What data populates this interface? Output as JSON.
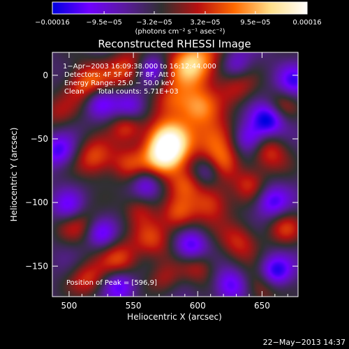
{
  "chart_data": {
    "type": "heatmap",
    "title": "Reconstructed RHESSI Image",
    "xlabel": "Heliocentric X (arcsec)",
    "ylabel": "Heliocentric Y (arcsec)",
    "xlim": [
      487,
      678
    ],
    "ylim": [
      -174,
      18
    ],
    "x_ticks": [
      500,
      550,
      600,
      650
    ],
    "y_ticks": [
      0,
      -50,
      -100,
      -150
    ],
    "x_tick_labels": [
      "500",
      "550",
      "600",
      "650"
    ],
    "y_tick_labels": [
      "0",
      "−50",
      "−100",
      "−150"
    ],
    "colorbar": {
      "range": [
        -0.00016,
        0.00016
      ],
      "ticks": [
        -0.00016,
        -9.5e-05,
        -3.2e-05,
        3.2e-05,
        9.5e-05,
        0.00016
      ],
      "tick_labels": [
        "−0.00016",
        "−9.5e−05",
        "−3.2e−05",
        "3.2e−05",
        "9.5e−05",
        "0.00016"
      ],
      "units_text": "(photons cm⁻² s⁻¹ asec⁻²)",
      "colors": [
        "#0000e0",
        "#7000ff",
        "#5a1a9e",
        "#303030",
        "#b81010",
        "#ff6a00",
        "#ffe08a",
        "#ffffff"
      ]
    },
    "annotations": [
      "1−Apr−2003 16:09:38.000 to 16:12:44.000",
      "Detectors: 4F 5F 6F 7F 8F, Att 0",
      "Energy Range: 25.0 − 50.0 keV",
      "Clean      Total counts: 5.71E+03"
    ],
    "peak_label": "Position of Peak = [596,9]",
    "peak_position": [
      596,
      9
    ],
    "footer_date": "22−May−2013 14:37",
    "blobs": [
      {
        "x": 596,
        "y": 9,
        "a": 1.0,
        "s": 14
      },
      {
        "x": 577,
        "y": -50,
        "a": 0.85,
        "s": 13
      },
      {
        "x": 575,
        "y": -64,
        "a": 0.95,
        "s": 12
      },
      {
        "x": 614,
        "y": -50,
        "a": 0.7,
        "s": 12
      },
      {
        "x": 600,
        "y": -25,
        "a": 0.65,
        "s": 11
      },
      {
        "x": 515,
        "y": -8,
        "a": 0.75,
        "s": 12
      },
      {
        "x": 545,
        "y": 5,
        "a": 0.55,
        "s": 11
      },
      {
        "x": 580,
        "y": -20,
        "a": 0.5,
        "s": 10
      },
      {
        "x": 520,
        "y": -65,
        "a": 0.6,
        "s": 11
      },
      {
        "x": 545,
        "y": -70,
        "a": 0.45,
        "s": 10
      },
      {
        "x": 630,
        "y": -10,
        "a": 0.4,
        "s": 11
      },
      {
        "x": 655,
        "y": -60,
        "a": 0.55,
        "s": 11
      },
      {
        "x": 668,
        "y": -120,
        "a": 0.45,
        "s": 10
      },
      {
        "x": 632,
        "y": -130,
        "a": 0.5,
        "s": 11
      },
      {
        "x": 610,
        "y": -100,
        "a": 0.6,
        "s": 11
      },
      {
        "x": 585,
        "y": -110,
        "a": 0.55,
        "s": 10
      },
      {
        "x": 565,
        "y": -130,
        "a": 0.5,
        "s": 11
      },
      {
        "x": 540,
        "y": -145,
        "a": 0.55,
        "s": 11
      },
      {
        "x": 505,
        "y": -115,
        "a": 0.5,
        "s": 11
      },
      {
        "x": 515,
        "y": -160,
        "a": 0.5,
        "s": 10
      },
      {
        "x": 600,
        "y": -150,
        "a": 0.45,
        "s": 10
      },
      {
        "x": 650,
        "y": -165,
        "a": 0.5,
        "s": 10
      },
      {
        "x": 545,
        "y": -40,
        "a": 0.55,
        "s": 9
      },
      {
        "x": 490,
        "y": -30,
        "a": 0.3,
        "s": 10
      },
      {
        "x": 620,
        "y": -70,
        "a": 0.45,
        "s": 10
      },
      {
        "x": 640,
        "y": -85,
        "a": 0.45,
        "s": 9
      },
      {
        "x": 590,
        "y": -85,
        "a": 0.45,
        "s": 9
      },
      {
        "x": 555,
        "y": -105,
        "a": 0.4,
        "s": 9
      },
      {
        "x": 575,
        "y": -160,
        "a": 0.35,
        "s": 9
      },
      {
        "x": 665,
        "y": -25,
        "a": 0.35,
        "s": 9
      },
      {
        "x": 523,
        "y": -20,
        "a": -0.6,
        "s": 9
      },
      {
        "x": 548,
        "y": -25,
        "a": -0.55,
        "s": 9
      },
      {
        "x": 655,
        "y": -35,
        "a": -0.8,
        "s": 9
      },
      {
        "x": 640,
        "y": -50,
        "a": -0.65,
        "s": 9
      },
      {
        "x": 500,
        "y": -105,
        "a": -0.6,
        "s": 9
      },
      {
        "x": 492,
        "y": -60,
        "a": -0.55,
        "s": 9
      },
      {
        "x": 595,
        "y": -135,
        "a": -0.65,
        "s": 9
      },
      {
        "x": 658,
        "y": -100,
        "a": -0.55,
        "s": 9
      },
      {
        "x": 660,
        "y": -155,
        "a": -0.75,
        "s": 9
      },
      {
        "x": 540,
        "y": -165,
        "a": -0.55,
        "s": 9
      },
      {
        "x": 565,
        "y": 5,
        "a": -0.5,
        "s": 8
      },
      {
        "x": 625,
        "y": -165,
        "a": -0.55,
        "s": 9
      },
      {
        "x": 608,
        "y": -75,
        "a": -0.45,
        "s": 8
      },
      {
        "x": 525,
        "y": -125,
        "a": -0.45,
        "s": 8
      },
      {
        "x": 675,
        "y": -5,
        "a": -0.5,
        "s": 9
      },
      {
        "x": 560,
        "y": -85,
        "a": -0.45,
        "s": 8
      },
      {
        "x": 630,
        "y": 8,
        "a": -0.4,
        "s": 8
      }
    ]
  }
}
